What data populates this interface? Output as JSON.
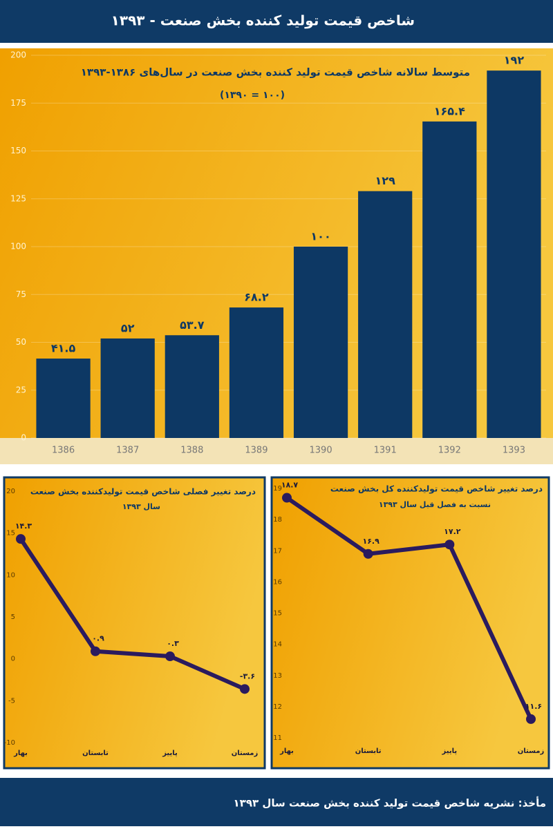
{
  "header": {
    "title": "شاخص قیمت تولید کننده بخش صنعت - ۱۳۹۳"
  },
  "footer": {
    "source": "مأخذ: نشریه شاخص قیمت تولید کننده بخش صنعت سال ۱۳۹۳"
  },
  "chart_data": [
    {
      "type": "bar",
      "title": "متوسط سالانه شاخص قیمت تولید کننده بخش صنعت در سال‌های ۱۳۸۶-۱۳۹۳",
      "subtitle": "(۱۰۰ = ۱۳۹۰)",
      "categories": [
        "1386",
        "1387",
        "1388",
        "1389",
        "1390",
        "1391",
        "1392",
        "1393"
      ],
      "values": [
        41.5,
        52,
        53.7,
        68.2,
        100,
        129,
        165.4,
        192
      ],
      "value_labels": [
        "۴۱.۵",
        "۵۲",
        "۵۳.۷",
        "۶۸.۲",
        "۱۰۰",
        "۱۲۹",
        "۱۶۵.۴",
        "۱۹۲"
      ],
      "color": "#0d3864",
      "ylim": [
        0,
        200
      ],
      "yticks": [
        0,
        25,
        50,
        75,
        100,
        125,
        150,
        175,
        200
      ],
      "grid": true
    },
    {
      "type": "line",
      "title": "درصد تغییر فصلی شاخص قیمت تولیدکننده بخش صنعت",
      "subtitle": "سال ۱۳۹۳",
      "categories": [
        "بهار",
        "تابستان",
        "پاییز",
        "زمستان"
      ],
      "values": [
        14.3,
        0.9,
        0.3,
        -3.6
      ],
      "value_labels": [
        "۱۴.۳",
        "۰.۹",
        "۰.۳",
        "-۳.۶"
      ],
      "color": "#2b1b5e",
      "ylim": [
        -10,
        20
      ],
      "yticks": [
        -10,
        -5,
        0,
        5,
        10,
        15,
        20
      ]
    },
    {
      "type": "line",
      "title": "درصد تغییر شاخص قیمت تولیدکننده کل بخش صنعت",
      "subtitle": "نسبت به فصل  قبل سال ۱۳۹۳",
      "categories": [
        "بهار",
        "تابستان",
        "پاییز",
        "زمستان"
      ],
      "values": [
        18.7,
        16.9,
        17.2,
        11.6
      ],
      "value_labels": [
        "۱۸.۷",
        "۱۶.۹",
        "۱۷.۲",
        "۱۱.۶"
      ],
      "color": "#2b1b5e",
      "ylim": [
        11,
        19
      ],
      "yticks": [
        11,
        12,
        13,
        14,
        15,
        16,
        17,
        18,
        19
      ]
    }
  ]
}
